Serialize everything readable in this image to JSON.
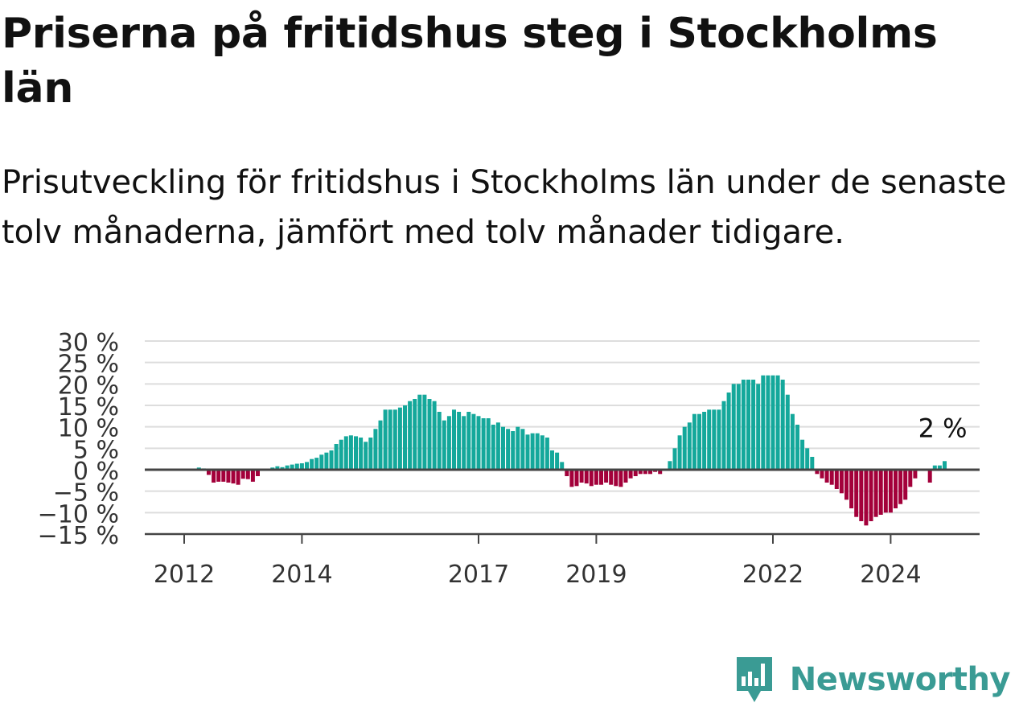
{
  "header": {
    "title": "Priserna på fritidshus steg i Stockholms län",
    "subtitle": "Prisutveckling för fritidshus i Stockholms län under de senaste tolv månaderna, jämfört med tolv månader tidigare."
  },
  "brand": {
    "name": "Newsworthy",
    "logo_icon": "bar-chart-speech-bubble-icon"
  },
  "colors": {
    "positive": "#14a89b",
    "negative": "#a3003a",
    "grid": "#dddddd",
    "axis": "#444444",
    "brand": "#3a9b94"
  },
  "chart_data": {
    "type": "bar",
    "ylabel": "",
    "xlabel": "",
    "ylim": [
      -15,
      30
    ],
    "y_ticks": [
      30,
      25,
      20,
      15,
      10,
      5,
      0,
      -5,
      -10,
      -15
    ],
    "y_tick_labels": [
      "30 %",
      "25 %",
      "20 %",
      "15 %",
      "10 %",
      "5 %",
      "0 %",
      "−5 %",
      "−10 %",
      "−15 %"
    ],
    "x_ticks": [
      {
        "label": "2012",
        "month_index": 0
      },
      {
        "label": "2014",
        "month_index": 24
      },
      {
        "label": "2017",
        "month_index": 60
      },
      {
        "label": "2019",
        "month_index": 84
      },
      {
        "label": "2022",
        "month_index": 120
      },
      {
        "label": "2024",
        "month_index": 144
      }
    ],
    "start_label": "2012",
    "values": [
      null,
      null,
      null,
      0.5,
      0.3,
      -1.2,
      -3,
      -2.8,
      -2.8,
      -3,
      -3.2,
      -3.5,
      -2.1,
      -2.2,
      -2.8,
      -1.5,
      null,
      null,
      0.5,
      0.8,
      0.6,
      1,
      1.2,
      1.4,
      1.5,
      1.8,
      2.5,
      2.8,
      3.5,
      4,
      4.5,
      6,
      7,
      7.8,
      8,
      7.8,
      7.5,
      6.5,
      7.5,
      9.5,
      11.5,
      14,
      14,
      14,
      14.5,
      15,
      16,
      16.5,
      17.5,
      17.5,
      16.5,
      16,
      13.5,
      11.5,
      12.5,
      14,
      13.5,
      12.5,
      13.5,
      13,
      12.5,
      12,
      12,
      10.5,
      11,
      10,
      9.5,
      9,
      10,
      9.5,
      8.2,
      8.5,
      8.5,
      8,
      7.5,
      4.5,
      4,
      1.8,
      -1.5,
      -4,
      -3.8,
      -3,
      -3.2,
      -3.8,
      -3.5,
      -3.5,
      -3,
      -3.5,
      -3.8,
      -4,
      -3,
      -2,
      -1.5,
      -1,
      -1,
      -1,
      -0.5,
      -1,
      null,
      2,
      5,
      8,
      10,
      11,
      13,
      13,
      13.5,
      14,
      14,
      14,
      16,
      18,
      20,
      20,
      21,
      21,
      21,
      20,
      22,
      22,
      22,
      22,
      21,
      17.5,
      13,
      10.5,
      7,
      5,
      3,
      -1,
      -2,
      -3,
      -3.5,
      -4.5,
      -5.5,
      -7,
      -9,
      -11,
      -12,
      -13,
      -12,
      -11,
      -10.5,
      -10,
      -10,
      -9,
      -8,
      -7,
      -4,
      -2,
      null,
      null,
      -3,
      1,
      1,
      2
    ],
    "annotation": "2 %"
  }
}
